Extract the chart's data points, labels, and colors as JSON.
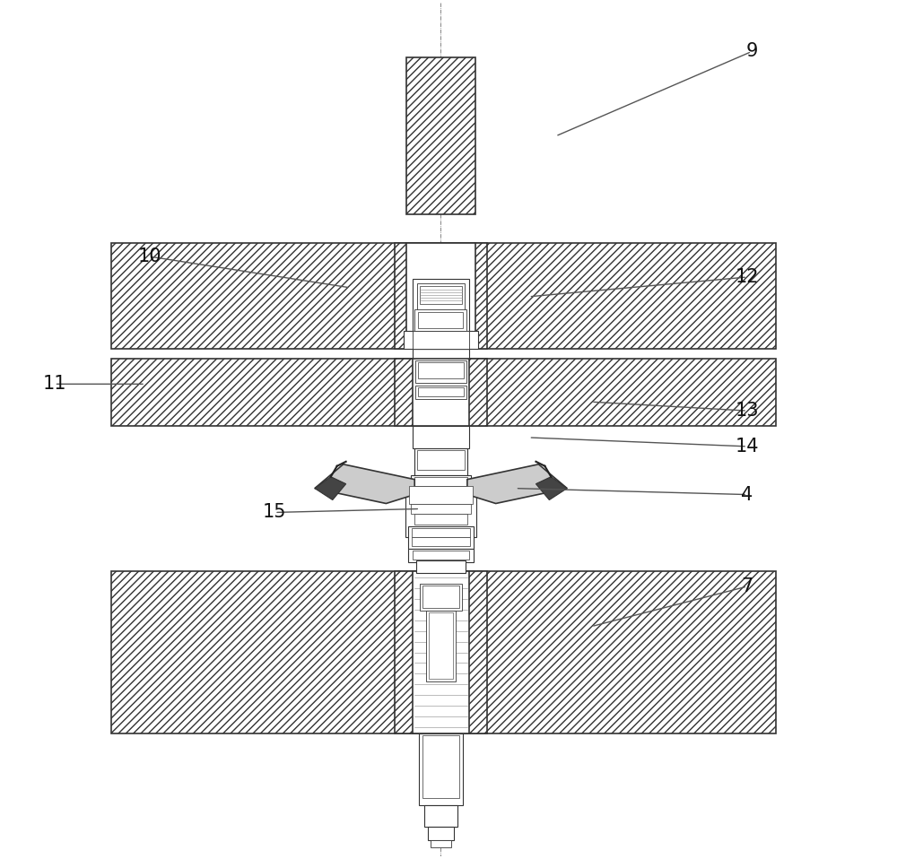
{
  "bg_color": "#ffffff",
  "line_color": "#333333",
  "fig_width": 10.0,
  "fig_height": 9.58,
  "label_fontsize": 15,
  "label_configs": [
    [
      "9",
      840,
      55,
      620,
      150
    ],
    [
      "10",
      165,
      285,
      390,
      320
    ],
    [
      "11",
      58,
      428,
      160,
      428
    ],
    [
      "12",
      835,
      308,
      590,
      330
    ],
    [
      "13",
      835,
      458,
      660,
      448
    ],
    [
      "14",
      835,
      498,
      590,
      488
    ],
    [
      "4",
      835,
      552,
      575,
      545
    ],
    [
      "15",
      305,
      572,
      468,
      568
    ],
    [
      "7",
      835,
      655,
      660,
      700
    ]
  ]
}
